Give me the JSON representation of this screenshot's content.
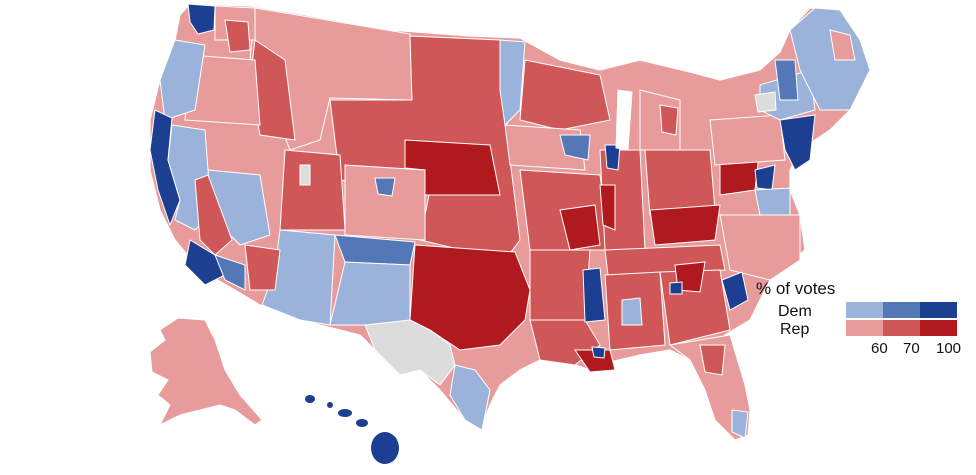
{
  "legend": {
    "title": "% of votes",
    "dem_label": "Dem",
    "rep_label": "Rep",
    "ticks": [
      "60",
      "70",
      "100"
    ],
    "colors": {
      "dem": [
        "#9bb3da",
        "#5477b8",
        "#1d3f92"
      ],
      "rep": [
        "#e79b9b",
        "#cf5757",
        "#b0191e"
      ],
      "no_data": "#dcdcdc",
      "boundary": "#ffffff"
    }
  },
  "map": {
    "regions": [
      {
        "name": "pacific-northwest-coast",
        "party": "dem",
        "level": 2
      },
      {
        "name": "seattle-metro",
        "party": "dem",
        "level": 3
      },
      {
        "name": "california-coast",
        "party": "dem",
        "level": 3
      },
      {
        "name": "great-basin",
        "party": "rep",
        "level": 1
      },
      {
        "name": "nevada-west",
        "party": "dem",
        "level": 1
      },
      {
        "name": "arizona",
        "party": "dem",
        "level": 1
      },
      {
        "name": "new-mexico",
        "party": "dem",
        "level": 2
      },
      {
        "name": "northern-rockies",
        "party": "rep",
        "level": 1
      },
      {
        "name": "great-plains",
        "party": "rep",
        "level": 2
      },
      {
        "name": "nebraska-kansas",
        "party": "rep",
        "level": 3
      },
      {
        "name": "oklahoma-texas-north",
        "party": "rep",
        "level": 3
      },
      {
        "name": "west-texas",
        "party": "none",
        "level": 0
      },
      {
        "name": "upper-midwest",
        "party": "rep",
        "level": 2
      },
      {
        "name": "minnesota-north",
        "party": "dem",
        "level": 1
      },
      {
        "name": "chicago-metro",
        "party": "dem",
        "level": 3
      },
      {
        "name": "appalachia",
        "party": "rep",
        "level": 3
      },
      {
        "name": "mississippi-delta",
        "party": "dem",
        "level": 3
      },
      {
        "name": "southeast",
        "party": "rep",
        "level": 2
      },
      {
        "name": "florida",
        "party": "rep",
        "level": 1
      },
      {
        "name": "northeast-corridor",
        "party": "dem",
        "level": 3
      },
      {
        "name": "new-england",
        "party": "dem",
        "level": 1
      },
      {
        "name": "alaska",
        "party": "rep",
        "level": 1
      },
      {
        "name": "hawaii",
        "party": "dem",
        "level": 3
      }
    ]
  }
}
